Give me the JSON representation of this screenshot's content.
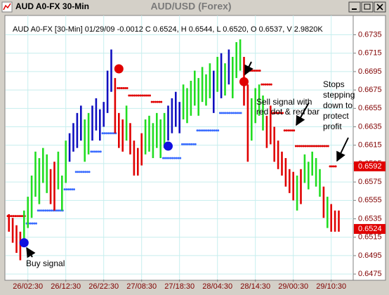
{
  "window_title": "AUD A0-FX 30-Min",
  "chart_data": {
    "type": "ohlc",
    "title": "AUD/USD (Forex)",
    "subtitle": "AUD A0-FX [30-Min] 01/29/09 -0.0012 C 0.6524, H 0.6544, L 0.6520, O 0.6537, V 2.9820K",
    "categories": [
      null,
      null,
      null,
      null,
      null,
      "26/02:30",
      null,
      null,
      null,
      null,
      null,
      null,
      null,
      null,
      null,
      "26/12:30",
      null,
      null,
      null,
      null,
      null,
      null,
      null,
      null,
      null,
      "26/22:30",
      null,
      null,
      null,
      null,
      null,
      null,
      null,
      null,
      null,
      "27/08:30",
      null,
      null,
      null,
      null,
      null,
      null,
      null,
      null,
      null,
      "27/18:30",
      null,
      null,
      null,
      null,
      null,
      null,
      null,
      null,
      null,
      "28/04:30",
      null,
      null,
      null,
      null,
      null,
      null,
      null,
      null,
      null,
      "28/14:30",
      null,
      null,
      null,
      null,
      null,
      null,
      null,
      null,
      null,
      "29/00:30",
      null,
      null,
      null,
      null,
      null,
      null,
      null,
      null,
      null,
      "29/10:30",
      null,
      null
    ],
    "high": [
      0.654,
      0.6536,
      0.6528,
      0.6521,
      0.6544,
      0.6559,
      0.6582,
      0.6608,
      0.6601,
      0.6612,
      0.6605,
      0.6589,
      0.6597,
      0.6608,
      0.6582,
      0.662,
      0.6628,
      0.6639,
      0.665,
      0.6658,
      0.6643,
      0.665,
      0.6658,
      0.6666,
      0.6654,
      0.6662,
      0.6696,
      0.6719,
      0.6688,
      0.665,
      0.6643,
      0.6658,
      0.6639,
      0.662,
      0.6612,
      0.6628,
      0.6643,
      0.6647,
      0.6639,
      0.665,
      0.6643,
      0.665,
      0.6658,
      0.6666,
      0.6673,
      0.6662,
      0.6681,
      0.6677,
      0.6685,
      0.6696,
      0.6688,
      0.67,
      0.6692,
      0.6704,
      0.6696,
      0.6711,
      0.6715,
      0.6704,
      0.6719,
      0.6711,
      0.6727,
      0.673,
      0.6711,
      0.6681,
      0.6666,
      0.6677,
      0.6681,
      0.6669,
      0.6647,
      0.6658,
      0.6635,
      0.662,
      0.6608,
      0.6601,
      0.6589,
      0.6586,
      0.6582,
      0.6589,
      0.6605,
      0.6597,
      0.6608,
      0.6601,
      0.6589,
      0.657,
      0.6559,
      0.6551,
      0.6544,
      0.6544
    ],
    "low": [
      0.6521,
      0.6509,
      0.6498,
      0.649,
      0.6513,
      0.6525,
      0.6536,
      0.6559,
      0.6551,
      0.6574,
      0.6563,
      0.6551,
      0.6544,
      0.6567,
      0.6544,
      0.6574,
      0.6597,
      0.6608,
      0.6612,
      0.662,
      0.6597,
      0.6605,
      0.662,
      0.6631,
      0.662,
      0.6635,
      0.665,
      0.6673,
      0.6628,
      0.6612,
      0.6608,
      0.662,
      0.6605,
      0.6582,
      0.6582,
      0.6593,
      0.6605,
      0.6608,
      0.6601,
      0.6612,
      0.6601,
      0.6612,
      0.662,
      0.6628,
      0.6635,
      0.6628,
      0.6643,
      0.6639,
      0.6647,
      0.6658,
      0.6647,
      0.6662,
      0.6658,
      0.6666,
      0.665,
      0.6673,
      0.6666,
      0.6669,
      0.6681,
      0.6666,
      0.6688,
      0.6696,
      0.6658,
      0.6597,
      0.662,
      0.6639,
      0.6647,
      0.6631,
      0.6612,
      0.6616,
      0.6597,
      0.6589,
      0.6582,
      0.657,
      0.6563,
      0.6555,
      0.6544,
      0.6551,
      0.6574,
      0.6567,
      0.6582,
      0.657,
      0.6559,
      0.6536,
      0.6525,
      0.6521,
      0.6521,
      0.6521
    ],
    "bar_color": [
      "#e00000",
      "#e00000",
      "#e00000",
      "#e00000",
      "#22dd22",
      "#22dd22",
      "#22dd22",
      "#22dd22",
      "#22dd22",
      "#22dd22",
      "#22dd22",
      "#e00000",
      "#e00000",
      "#22dd22",
      "#22dd22",
      "#22dd22",
      "#1010c0",
      "#1010c0",
      "#1010c0",
      "#1010c0",
      "#22dd22",
      "#22dd22",
      "#1010c0",
      "#1010c0",
      "#1010c0",
      "#1010c0",
      "#1010c0",
      "#1010c0",
      "#e00000",
      "#e00000",
      "#e00000",
      "#22dd22",
      "#e00000",
      "#e00000",
      "#e00000",
      "#e00000",
      "#22dd22",
      "#22dd22",
      "#22dd22",
      "#22dd22",
      "#22dd22",
      "#22dd22",
      "#1010c0",
      "#1010c0",
      "#1010c0",
      "#1010c0",
      "#22dd22",
      "#22dd22",
      "#22dd22",
      "#22dd22",
      "#22dd22",
      "#22dd22",
      "#22dd22",
      "#22dd22",
      "#1010c0",
      "#22dd22",
      "#1010c0",
      "#22dd22",
      "#1010c0",
      "#22dd22",
      "#22dd22",
      "#22dd22",
      "#e00000",
      "#e00000",
      "#22dd22",
      "#22dd22",
      "#22dd22",
      "#22dd22",
      "#e00000",
      "#e00000",
      "#e00000",
      "#e00000",
      "#e00000",
      "#e00000",
      "#e00000",
      "#e00000",
      "#22dd22",
      "#e00000",
      "#22dd22",
      "#22dd22",
      "#22dd22",
      "#22dd22",
      "#22dd22",
      "#e00000",
      "#22dd22",
      "#e00000",
      "#e00000",
      "#e00000"
    ],
    "stop": [
      0.6538,
      0.6538,
      0.6538,
      0.6538,
      0.6538,
      0.653,
      0.653,
      0.653,
      0.6544,
      0.6544,
      0.6544,
      0.6544,
      0.6544,
      0.6544,
      0.6544,
      0.6567,
      0.6567,
      0.6567,
      0.6586,
      0.6586,
      0.6586,
      0.6586,
      0.6608,
      0.6608,
      0.6608,
      0.6628,
      0.6628,
      0.6628,
      0.6628,
      0.6677,
      0.6677,
      0.6677,
      0.6669,
      0.6669,
      0.6669,
      0.6669,
      0.6669,
      0.6669,
      0.6662,
      0.6662,
      0.6662,
      0.6601,
      0.6601,
      0.6601,
      0.6601,
      0.6601,
      0.6616,
      0.6616,
      0.6616,
      0.6616,
      0.6631,
      0.6631,
      0.6631,
      0.6631,
      0.6631,
      0.6631,
      0.665,
      0.665,
      0.665,
      0.665,
      0.665,
      0.665,
      null,
      0.6696,
      0.6696,
      0.6696,
      0.6696,
      0.6681,
      0.6681,
      0.6681,
      0.665,
      0.665,
      0.665,
      0.6631,
      0.6631,
      0.6631,
      0.6614,
      0.6614,
      0.6614,
      0.6614,
      0.6614,
      0.6614,
      0.6614,
      0.6614,
      0.6614,
      0.6592,
      0.6592,
      null
    ],
    "stop_color": [
      "#e00000",
      "#e00000",
      "#e00000",
      "#e00000",
      "#e00000",
      "#3a6cff",
      "#3a6cff",
      "#3a6cff",
      "#3a6cff",
      "#3a6cff",
      "#3a6cff",
      "#3a6cff",
      "#3a6cff",
      "#3a6cff",
      "#3a6cff",
      "#3a6cff",
      "#3a6cff",
      "#3a6cff",
      "#3a6cff",
      "#3a6cff",
      "#3a6cff",
      "#3a6cff",
      "#3a6cff",
      "#3a6cff",
      "#3a6cff",
      "#3a6cff",
      "#3a6cff",
      "#3a6cff",
      "#3a6cff",
      "#e00000",
      "#e00000",
      "#e00000",
      "#e00000",
      "#e00000",
      "#e00000",
      "#e00000",
      "#e00000",
      "#e00000",
      "#e00000",
      "#e00000",
      "#e00000",
      "#3a6cff",
      "#3a6cff",
      "#3a6cff",
      "#3a6cff",
      "#3a6cff",
      "#3a6cff",
      "#3a6cff",
      "#3a6cff",
      "#3a6cff",
      "#3a6cff",
      "#3a6cff",
      "#3a6cff",
      "#3a6cff",
      "#3a6cff",
      "#3a6cff",
      "#3a6cff",
      "#3a6cff",
      "#3a6cff",
      "#3a6cff",
      "#3a6cff",
      "#3a6cff",
      "#e00000",
      "#e00000",
      "#e00000",
      "#e00000",
      "#e00000",
      "#e00000",
      "#e00000",
      "#e00000",
      "#e00000",
      "#e00000",
      "#e00000",
      "#e00000",
      "#e00000",
      "#e00000",
      "#e00000",
      "#e00000",
      "#e00000",
      "#e00000",
      "#e00000",
      "#e00000",
      "#e00000",
      "#e00000",
      "#e00000",
      "#e00000",
      "#e00000",
      "#e00000"
    ],
    "signals": [
      {
        "bar": 4,
        "value": 0.6509,
        "color": "#1010e0"
      },
      {
        "bar": 29,
        "value": 0.6698,
        "color": "#e00000"
      },
      {
        "bar": 42,
        "value": 0.6614,
        "color": "#1010e0"
      },
      {
        "bar": 62,
        "value": 0.6684,
        "color": "#e00000"
      }
    ],
    "price_boxes": [
      {
        "value": 0.6592,
        "color": "#e00000"
      },
      {
        "value": 0.6524,
        "color": "#e00000"
      }
    ],
    "ylim": [
      0.6469,
      0.6756
    ],
    "yticks": [
      0.6735,
      0.6715,
      0.6695,
      0.6675,
      0.6655,
      0.6635,
      0.6615,
      0.6595,
      0.6575,
      0.6555,
      0.6535,
      0.6515,
      0.6495,
      0.6475
    ],
    "grid": true,
    "annotations": [
      {
        "lines": [
          "Buy signal"
        ]
      },
      {
        "lines": [
          "Sell signal with",
          "red dot & red bar"
        ]
      },
      {
        "lines": [
          "Stops",
          "stepping",
          "down to",
          "protect",
          "profit"
        ]
      }
    ]
  }
}
